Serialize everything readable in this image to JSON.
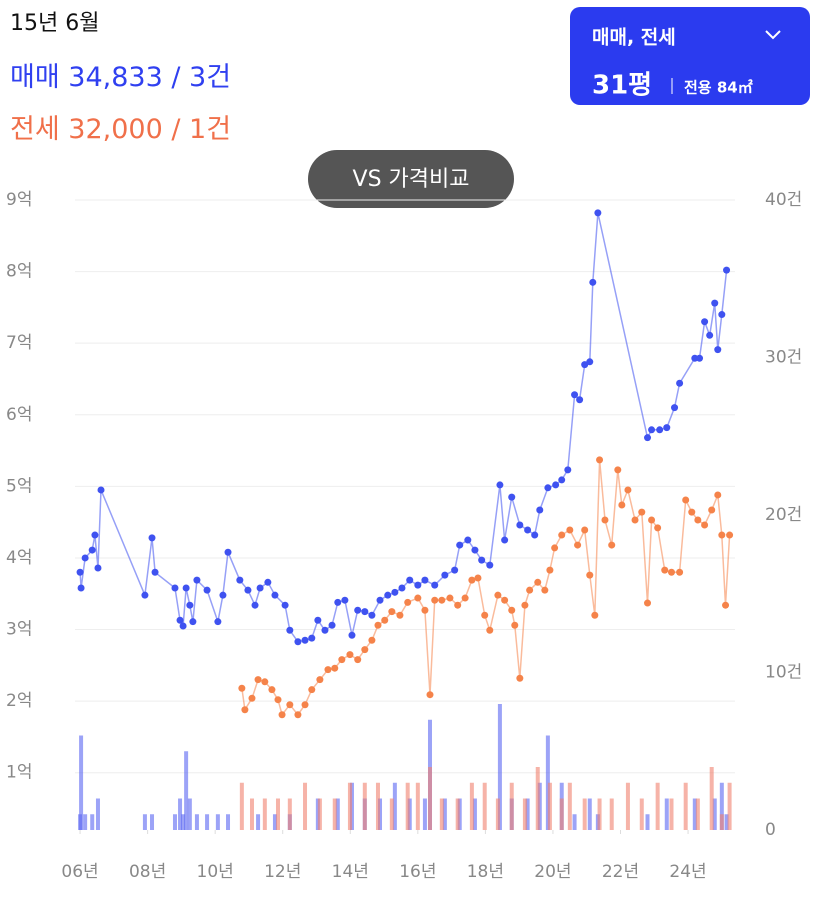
{
  "header": {
    "date": "15년 6월",
    "sale": {
      "label": "매매",
      "value": "34,833 / 3건"
    },
    "jeonse": {
      "label": "전세",
      "value": "32,000 / 1건"
    }
  },
  "control": {
    "selected": "매매, 전세",
    "size": "31평",
    "area": "전용 84㎡"
  },
  "compare_button": "VS 가격비교",
  "chart_data": {
    "type": "line",
    "xlim": [
      2005.85,
      2025.39
    ],
    "xticks": [
      {
        "value": 2006,
        "label": "06년"
      },
      {
        "value": 2008,
        "label": "08년"
      },
      {
        "value": 2010,
        "label": "10년"
      },
      {
        "value": 2012,
        "label": "12년"
      },
      {
        "value": 2014,
        "label": "14년"
      },
      {
        "value": 2016,
        "label": "16년"
      },
      {
        "value": 2018,
        "label": "18년"
      },
      {
        "value": 2020,
        "label": "20년"
      },
      {
        "value": 2022,
        "label": "22년"
      },
      {
        "value": 2024,
        "label": "24년"
      }
    ],
    "ylim": [
      0.2,
      9
    ],
    "yticks": [
      {
        "value": 1,
        "label": "1억"
      },
      {
        "value": 2,
        "label": "2억"
      },
      {
        "value": 3,
        "label": "3억"
      },
      {
        "value": 4,
        "label": "4억"
      },
      {
        "value": 5,
        "label": "5억"
      },
      {
        "value": 6,
        "label": "6억"
      },
      {
        "value": 7,
        "label": "7억"
      },
      {
        "value": 8,
        "label": "8억"
      },
      {
        "value": 9,
        "label": "9억"
      }
    ],
    "y2lim": [
      0,
      40
    ],
    "y2ticks": [
      0,
      {
        "value": 10,
        "label": "10건"
      },
      {
        "value": 20,
        "label": "20건"
      },
      {
        "value": 30,
        "label": "30건"
      },
      {
        "value": 40,
        "label": "40건"
      }
    ],
    "grid": true,
    "series": [
      {
        "type": "bar",
        "axis": "y2",
        "color": "#5a66f2",
        "x": [
          2006.0,
          2006.03,
          2006.15,
          2006.36,
          2006.53,
          2007.92,
          2008.13,
          2008.81,
          2008.96,
          2009.05,
          2009.14,
          2009.25,
          2009.46,
          2009.76,
          2010.08,
          2010.38,
          2011.27,
          2011.77,
          2012.21,
          2013.04,
          2013.63,
          2014.05,
          2014.43,
          2014.88,
          2015.32,
          2015.76,
          2016.21,
          2016.36,
          2016.8,
          2017.24,
          2017.69,
          2018.43,
          2018.78,
          2019.25,
          2019.61,
          2019.85,
          2020.26,
          2020.64,
          2021.09,
          2021.33,
          2022.8,
          2023.37,
          2024.2,
          2024.79,
          2025.0,
          2025.14
        ],
        "values": [
          1,
          6,
          1,
          1,
          2,
          1,
          1,
          1,
          2,
          1,
          5,
          2,
          1,
          1,
          1,
          1,
          1,
          1,
          1,
          2,
          2,
          3,
          2,
          2,
          3,
          2,
          2,
          7,
          2,
          2,
          2,
          8,
          2,
          2,
          3,
          6,
          3,
          1,
          2,
          1,
          1,
          2,
          2,
          2,
          3,
          1
        ]
      },
      {
        "type": "bar",
        "axis": "y2",
        "color": "#f0806e",
        "x": [
          2010.79,
          2011.09,
          2011.47,
          2011.86,
          2012.21,
          2012.66,
          2013.1,
          2013.54,
          2013.99,
          2014.43,
          2014.82,
          2015.23,
          2015.7,
          2016.0,
          2016.36,
          2016.71,
          2017.18,
          2017.6,
          2017.98,
          2018.37,
          2018.78,
          2019.17,
          2019.55,
          2019.91,
          2020.26,
          2020.5,
          2020.94,
          2021.38,
          2021.74,
          2022.22,
          2022.63,
          2023.1,
          2023.51,
          2023.93,
          2024.29,
          2024.7,
          2025.0,
          2025.23
        ],
        "values": [
          3,
          2,
          2,
          2,
          2,
          3,
          2,
          2,
          3,
          3,
          3,
          2,
          3,
          3,
          4,
          2,
          2,
          3,
          3,
          2,
          3,
          2,
          4,
          3,
          2,
          3,
          2,
          2,
          2,
          3,
          2,
          3,
          2,
          3,
          2,
          4,
          1,
          3
        ]
      },
      {
        "type": "line",
        "color": "#3f52f0",
        "x": [
          2006.0,
          2006.03,
          2006.15,
          2006.36,
          2006.44,
          2006.53,
          2006.62,
          2007.92,
          2008.13,
          2008.22,
          2008.81,
          2008.96,
          2009.05,
          2009.14,
          2009.25,
          2009.34,
          2009.46,
          2009.76,
          2010.08,
          2010.23,
          2010.38,
          2010.73,
          2010.97,
          2011.18,
          2011.33,
          2011.56,
          2011.77,
          2012.07,
          2012.21,
          2012.45,
          2012.66,
          2012.86,
          2013.04,
          2013.25,
          2013.46,
          2013.63,
          2013.84,
          2014.05,
          2014.22,
          2014.43,
          2014.64,
          2014.88,
          2015.11,
          2015.32,
          2015.53,
          2015.76,
          2016.0,
          2016.21,
          2016.5,
          2016.8,
          2017.09,
          2017.24,
          2017.48,
          2017.69,
          2017.89,
          2018.13,
          2018.43,
          2018.57,
          2018.78,
          2019.02,
          2019.25,
          2019.46,
          2019.61,
          2019.85,
          2020.08,
          2020.26,
          2020.44,
          2020.64,
          2020.79,
          2020.94,
          2021.09,
          2021.18,
          2021.33,
          2022.8,
          2022.92,
          2023.16,
          2023.37,
          2023.6,
          2023.75,
          2024.2,
          2024.34,
          2024.49,
          2024.64,
          2024.79,
          2024.88,
          2025.0,
          2025.14
        ],
        "values": [
          3.8,
          3.58,
          4.0,
          4.11,
          4.32,
          3.86,
          4.95,
          3.48,
          4.28,
          3.8,
          3.58,
          3.13,
          3.05,
          3.58,
          3.34,
          3.11,
          3.69,
          3.55,
          3.11,
          3.48,
          4.08,
          3.69,
          3.55,
          3.34,
          3.58,
          3.66,
          3.48,
          3.34,
          2.99,
          2.83,
          2.85,
          2.88,
          3.13,
          2.99,
          3.06,
          3.38,
          3.41,
          2.92,
          3.27,
          3.25,
          3.2,
          3.41,
          3.48,
          3.52,
          3.58,
          3.69,
          3.62,
          3.69,
          3.62,
          3.76,
          3.83,
          4.18,
          4.25,
          4.11,
          3.97,
          3.9,
          5.02,
          4.25,
          4.85,
          4.46,
          4.39,
          4.32,
          4.67,
          4.98,
          5.02,
          5.09,
          5.23,
          6.28,
          6.21,
          6.7,
          6.74,
          7.85,
          8.82,
          5.68,
          5.79,
          5.79,
          5.82,
          6.1,
          6.44,
          6.79,
          6.79,
          7.3,
          7.11,
          7.56,
          6.91,
          7.4,
          8.02
        ]
      },
      {
        "type": "line",
        "color": "#f5834a",
        "x": [
          2010.79,
          2010.88,
          2011.09,
          2011.27,
          2011.47,
          2011.68,
          2011.86,
          2011.98,
          2012.21,
          2012.45,
          2012.66,
          2012.86,
          2013.1,
          2013.34,
          2013.54,
          2013.75,
          2013.99,
          2014.22,
          2014.43,
          2014.64,
          2014.82,
          2015.02,
          2015.23,
          2015.47,
          2015.7,
          2016.0,
          2016.21,
          2016.36,
          2016.5,
          2016.71,
          2016.95,
          2017.18,
          2017.4,
          2017.6,
          2017.78,
          2017.98,
          2018.13,
          2018.37,
          2018.57,
          2018.78,
          2018.87,
          2019.02,
          2019.17,
          2019.31,
          2019.55,
          2019.76,
          2019.91,
          2020.05,
          2020.26,
          2020.5,
          2020.73,
          2020.94,
          2021.09,
          2021.24,
          2021.38,
          2021.54,
          2021.74,
          2021.92,
          2022.04,
          2022.22,
          2022.43,
          2022.63,
          2022.8,
          2022.92,
          2023.1,
          2023.31,
          2023.51,
          2023.75,
          2023.93,
          2024.11,
          2024.29,
          2024.49,
          2024.7,
          2024.88,
          2025.0,
          2025.11,
          2025.23
        ],
        "values": [
          2.18,
          1.88,
          2.04,
          2.3,
          2.27,
          2.16,
          2.02,
          1.81,
          1.95,
          1.81,
          1.95,
          2.16,
          2.3,
          2.44,
          2.46,
          2.58,
          2.65,
          2.58,
          2.72,
          2.85,
          3.06,
          3.13,
          3.25,
          3.2,
          3.38,
          3.44,
          3.27,
          2.09,
          3.41,
          3.41,
          3.44,
          3.34,
          3.44,
          3.69,
          3.72,
          3.2,
          2.99,
          3.48,
          3.41,
          3.27,
          3.06,
          2.32,
          3.34,
          3.55,
          3.66,
          3.55,
          3.83,
          4.14,
          4.32,
          4.39,
          4.18,
          4.39,
          3.76,
          3.2,
          5.37,
          4.53,
          4.18,
          5.23,
          4.74,
          4.95,
          4.53,
          4.64,
          3.37,
          4.53,
          4.42,
          3.83,
          3.8,
          3.8,
          4.81,
          4.64,
          4.53,
          4.46,
          4.67,
          4.88,
          4.32,
          3.34,
          4.32
        ]
      }
    ]
  }
}
